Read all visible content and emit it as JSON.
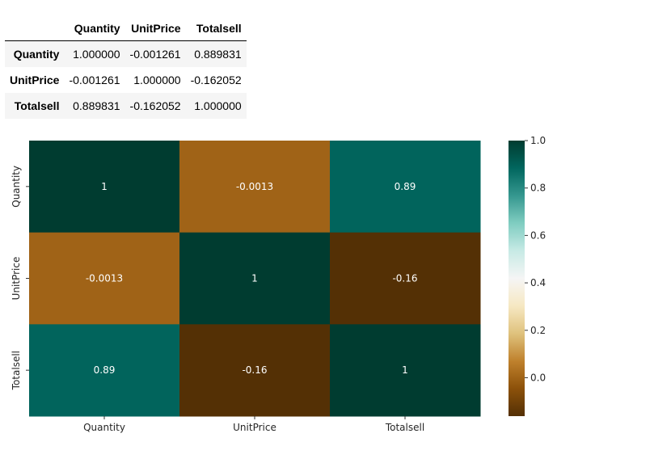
{
  "table": {
    "columns": [
      "Quantity",
      "UnitPrice",
      "Totalsell"
    ],
    "rows": [
      {
        "label": "Quantity",
        "values": [
          "1.000000",
          "-0.001261",
          "0.889831"
        ]
      },
      {
        "label": "UnitPrice",
        "values": [
          "-0.001261",
          "1.000000",
          "-0.162052"
        ]
      },
      {
        "label": "Totalsell",
        "values": [
          "0.889831",
          "-0.162052",
          "1.000000"
        ]
      }
    ]
  },
  "chart_data": {
    "type": "heatmap",
    "x_categories": [
      "Quantity",
      "UnitPrice",
      "Totalsell"
    ],
    "y_categories": [
      "Quantity",
      "UnitPrice",
      "Totalsell"
    ],
    "values": [
      [
        1.0,
        -0.001261,
        0.889831
      ],
      [
        -0.001261,
        1.0,
        -0.162052
      ],
      [
        0.889831,
        -0.162052,
        1.0
      ]
    ],
    "annotations": [
      [
        "1",
        "-0.0013",
        "0.89"
      ],
      [
        "-0.0013",
        "1",
        "-0.16"
      ],
      [
        "0.89",
        "-0.16",
        "1"
      ]
    ],
    "colormap": "BrBG",
    "vmin": -0.162052,
    "vmax": 1.0,
    "colorbar_ticks": [
      {
        "value": 0.0,
        "label": "0.0"
      },
      {
        "value": 0.2,
        "label": "0.2"
      },
      {
        "value": 0.4,
        "label": "0.4"
      },
      {
        "value": 0.6,
        "label": "0.6"
      },
      {
        "value": 0.8,
        "label": "0.8"
      },
      {
        "value": 1.0,
        "label": "1.0"
      }
    ],
    "title": "",
    "xlabel": "",
    "ylabel": ""
  }
}
